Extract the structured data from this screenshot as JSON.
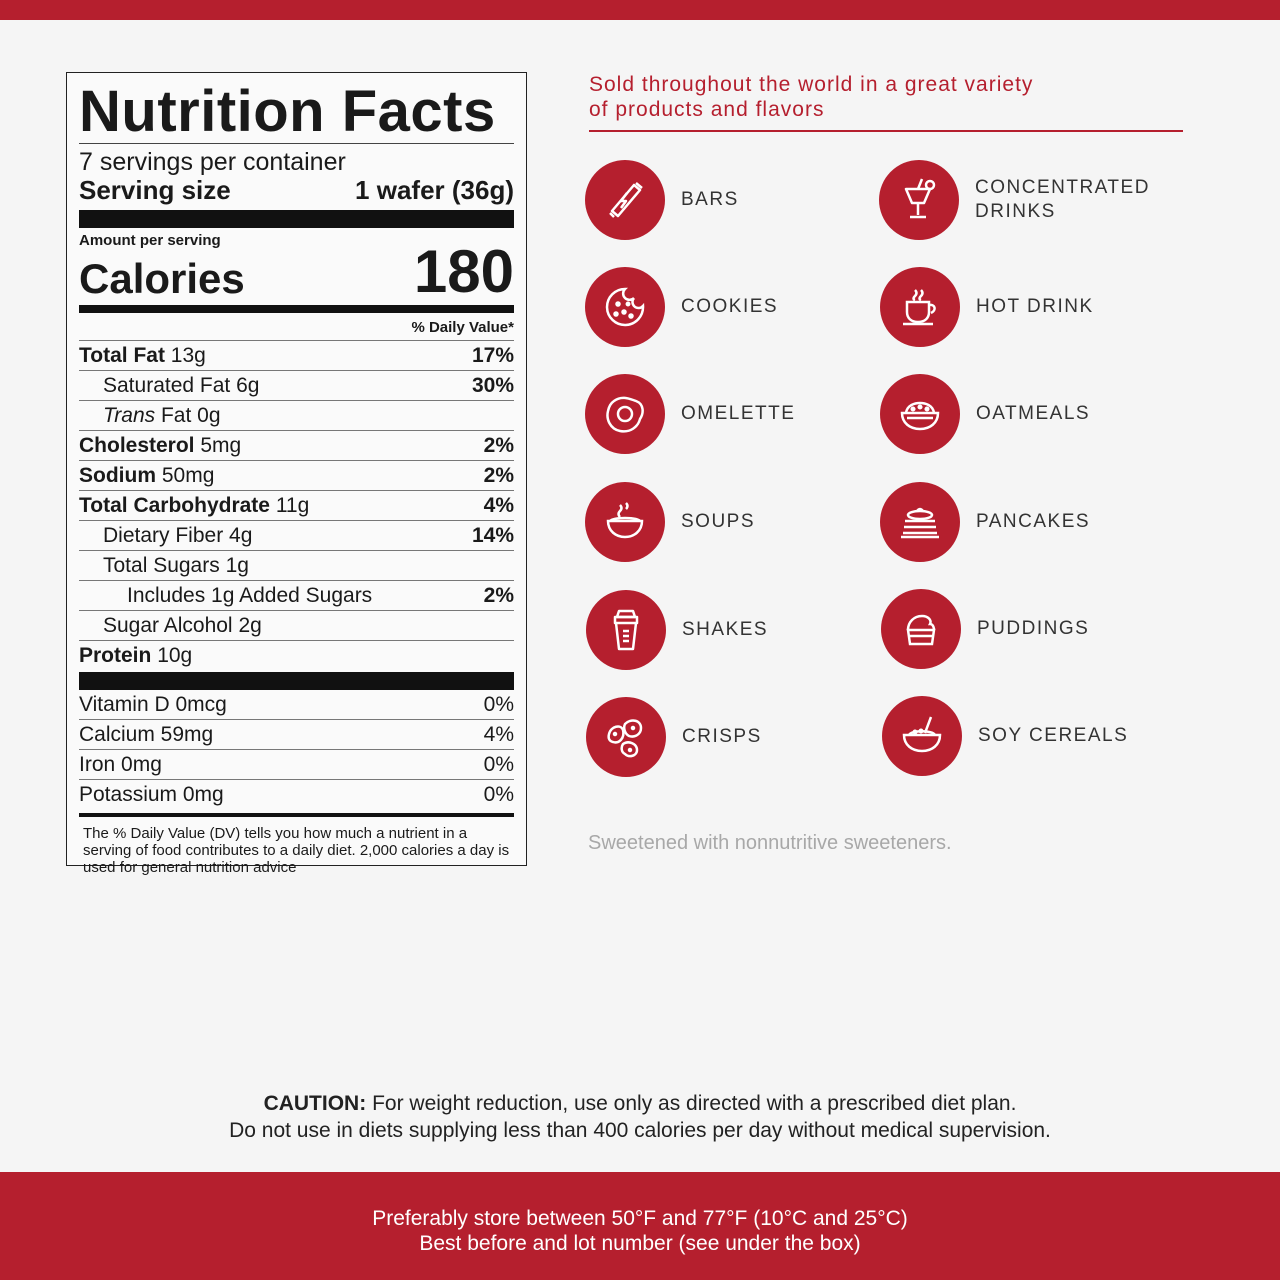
{
  "nutrition": {
    "title": "Nutrition Facts",
    "servings": "7 servings per container",
    "serving_size_label": "Serving size",
    "serving_size_value": "1 wafer (36g)",
    "amount_per_serving": "Amount per serving",
    "calories_label": "Calories",
    "calories_value": "180",
    "dv_header": "% Daily Value*",
    "rows": [
      {
        "name": "Total Fat",
        "amount": "13g",
        "dv": "17%"
      },
      {
        "name": "Saturated Fat",
        "amount": "6g",
        "dv": "30%"
      },
      {
        "name": "Trans",
        "name2": "Fat",
        "amount": "0g",
        "dv": ""
      },
      {
        "name": "Cholesterol",
        "amount": "5mg",
        "dv": "2%"
      },
      {
        "name": "Sodium",
        "amount": "50mg",
        "dv": "2%"
      },
      {
        "name": "Total Carbohydrate",
        "amount": "11g",
        "dv": "4%"
      },
      {
        "name": "Dietary Fiber",
        "amount": "4g",
        "dv": "14%"
      },
      {
        "name": "Total Sugars",
        "amount": "1g",
        "dv": ""
      },
      {
        "name": "Includes 1g Added Sugars",
        "amount": "",
        "dv": "2%"
      },
      {
        "name": "Sugar Alcohol",
        "amount": "2g",
        "dv": ""
      },
      {
        "name": "Protein",
        "amount": "10g",
        "dv": ""
      }
    ],
    "vitamins": [
      {
        "name": "Vitamin D 0mcg",
        "dv": "0%"
      },
      {
        "name": "Calcium 59mg",
        "dv": "4%"
      },
      {
        "name": "Iron 0mg",
        "dv": "0%"
      },
      {
        "name": "Potassium 0mg",
        "dv": "0%"
      }
    ],
    "footnote": "The % Daily Value (DV) tells you how much a nutrient in a serving of food contributes to a daily diet. 2,000 calories a day is used for general nutrition advice"
  },
  "products": {
    "heading_line1": "Sold throughout the world in a great variety",
    "heading_line2": "of products and flavors",
    "items": [
      {
        "label": "BARS",
        "icon": "bar-icon"
      },
      {
        "label": "CONCENTRATED DRINKS",
        "icon": "cocktail-icon"
      },
      {
        "label": "COOKIES",
        "icon": "cookie-icon"
      },
      {
        "label": "HOT DRINK",
        "icon": "cup-icon"
      },
      {
        "label": "OMELETTE",
        "icon": "egg-icon"
      },
      {
        "label": "OATMEALS",
        "icon": "oatmeal-bowl-icon"
      },
      {
        "label": "SOUPS",
        "icon": "soup-bowl-icon"
      },
      {
        "label": "PANCAKES",
        "icon": "pancakes-icon"
      },
      {
        "label": "SHAKES",
        "icon": "shaker-icon"
      },
      {
        "label": "PUDDINGS",
        "icon": "pudding-icon"
      },
      {
        "label": "CRISPS",
        "icon": "crisps-icon"
      },
      {
        "label": "SOY CEREALS",
        "icon": "cereal-bowl-icon"
      }
    ],
    "note": "Sweetened with nonnutritive sweeteners."
  },
  "caution": {
    "label": "CAUTION:",
    "line1": "For weight reduction, use only as directed with a prescribed diet plan.",
    "line2": "Do not use in diets supplying less than 400 calories per day without medical supervision."
  },
  "storage": {
    "line1": "Preferably store between 50°F and 77°F (10°C and 25°C)",
    "line2": "Best before and lot number (see under the box)"
  },
  "colors": {
    "brand_red": "#b51f2e"
  }
}
